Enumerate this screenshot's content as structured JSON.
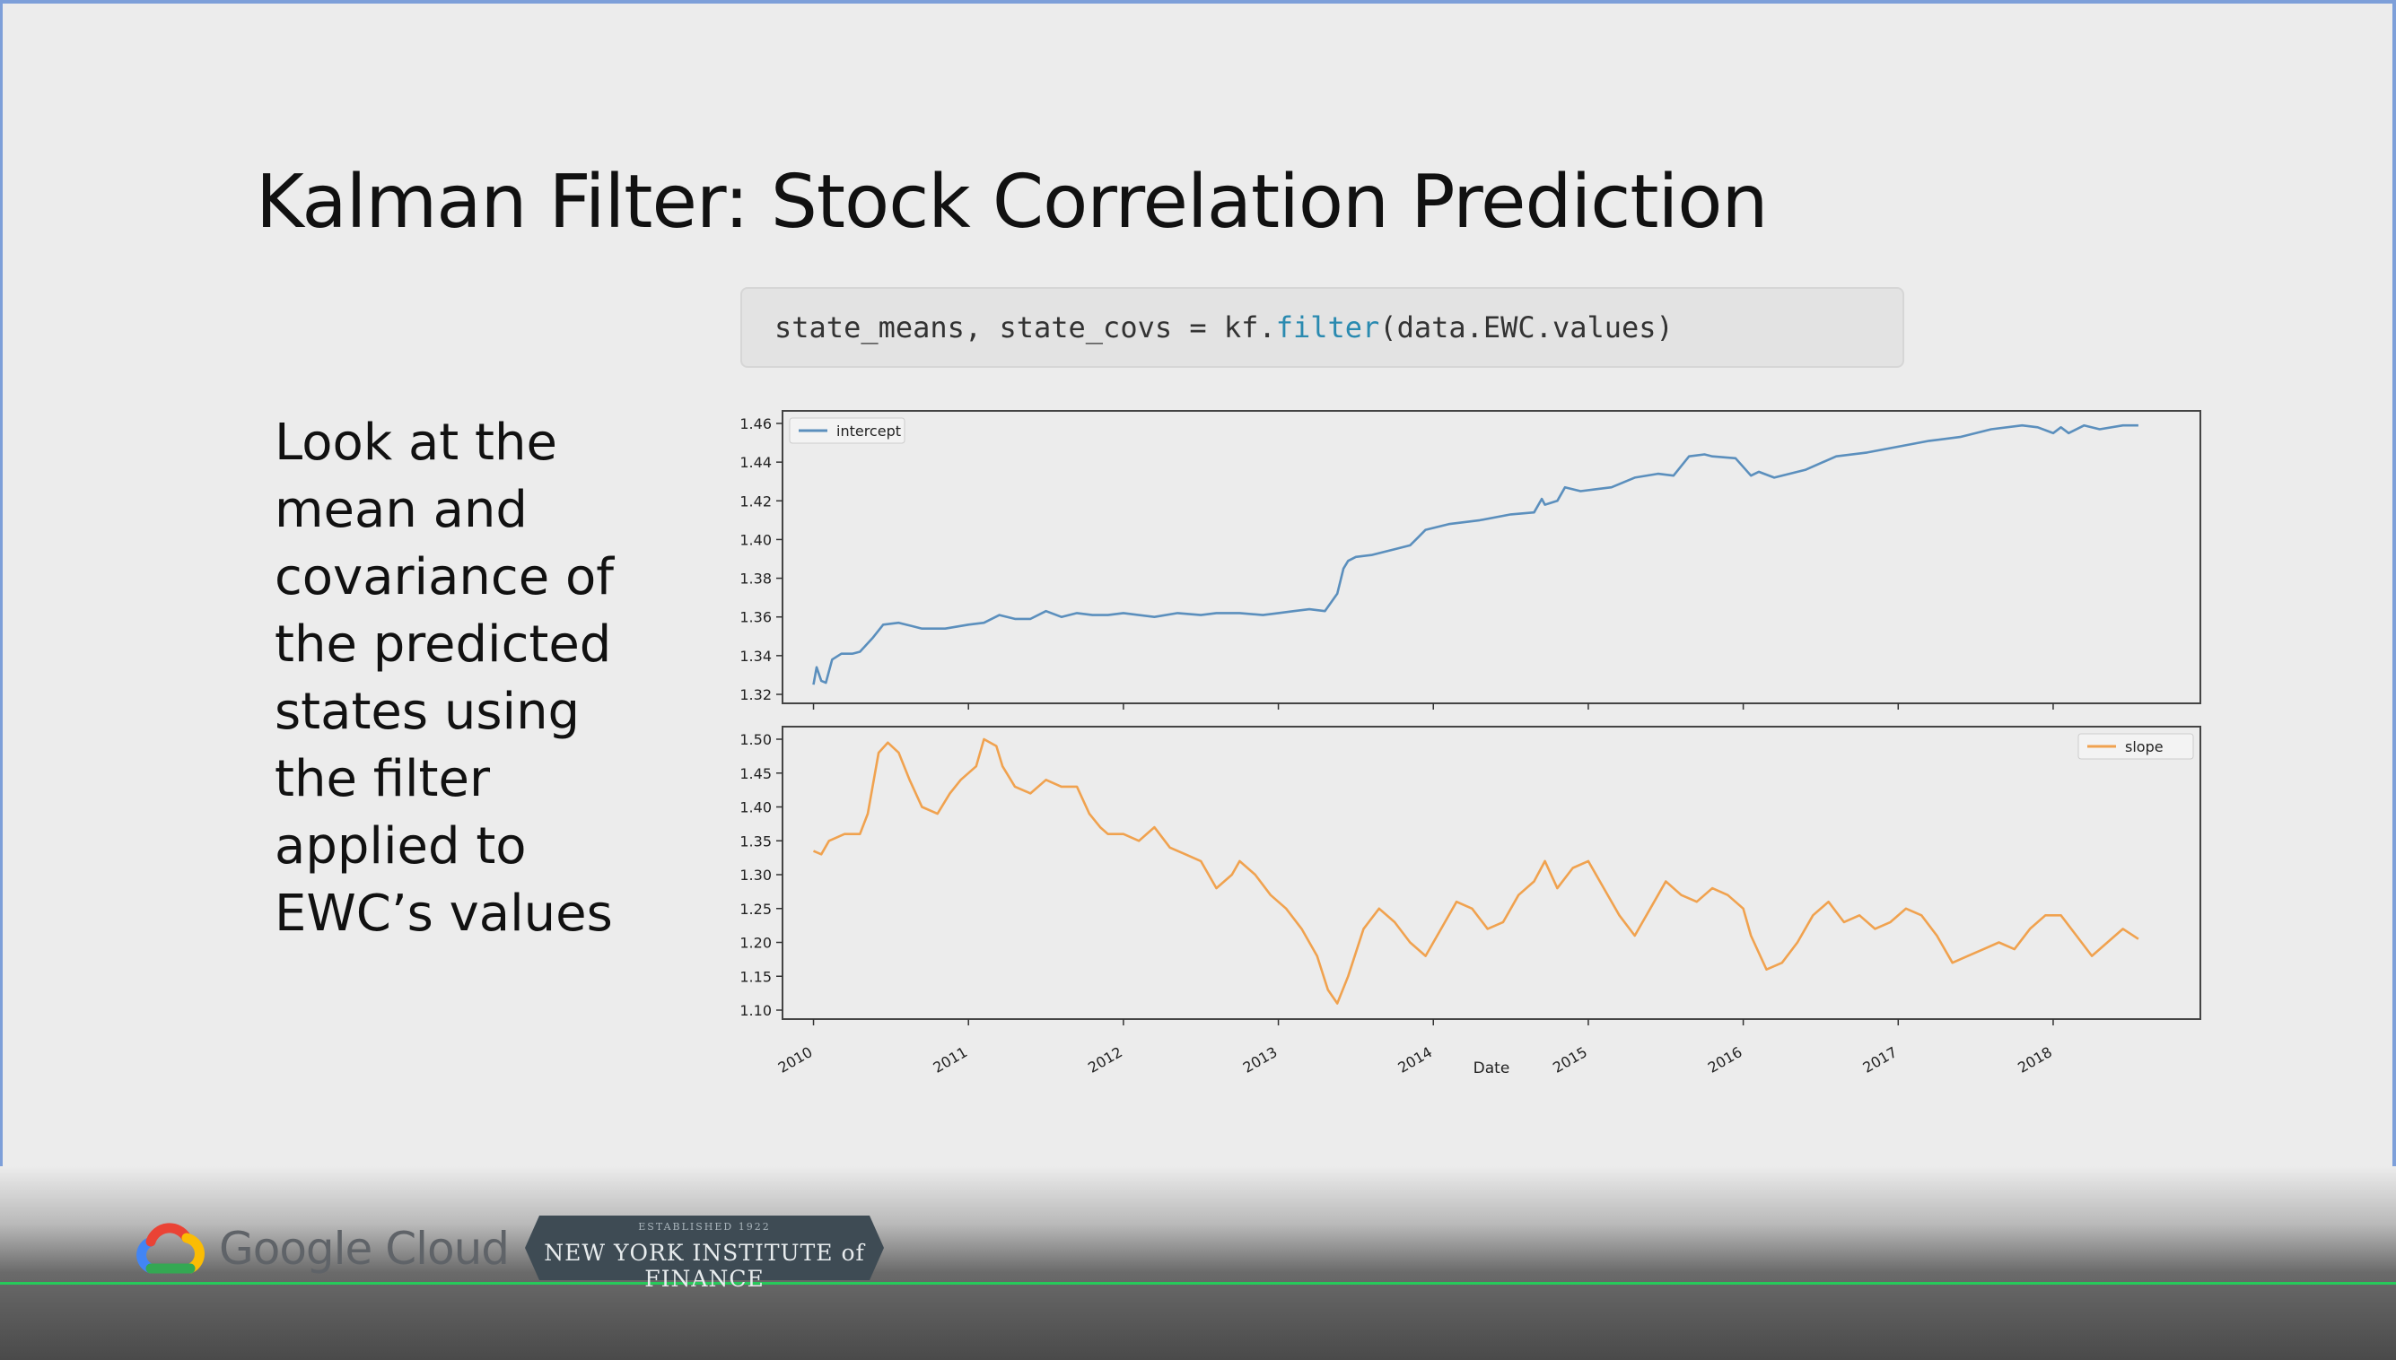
{
  "slide": {
    "title": "Kalman Filter: Stock Correlation Prediction",
    "code": {
      "prefix": "state_means, state_covs = kf.",
      "function": "filter",
      "suffix": "(data.EWC.values)",
      "function_color": "#2a8ab0"
    },
    "body": "Look at the\nmean and\ncovariance of\nthe predicted\nstates using\nthe filter\napplied to\nEWC’s values"
  },
  "footer": {
    "brand": "Google Cloud",
    "logo_icon": "google-cloud-icon",
    "badge_established": "ESTABLISHED 1922",
    "badge_name": "NEW YORK INSTITUTE of FINANCE"
  },
  "chart_data": [
    {
      "type": "line",
      "xlabel": "",
      "ylabel": "",
      "ylim": [
        1.32,
        1.46
      ],
      "y_ticks": [
        "1.32",
        "1.34",
        "1.36",
        "1.38",
        "1.40",
        "1.42",
        "1.44",
        "1.46"
      ],
      "x_range": [
        2009.8,
        2018.95
      ],
      "legend_position": "top-left",
      "series": [
        {
          "name": "intercept",
          "color": "#5b8fbd",
          "x": [
            2010.0,
            2010.02,
            2010.05,
            2010.08,
            2010.12,
            2010.18,
            2010.25,
            2010.3,
            2010.38,
            2010.45,
            2010.55,
            2010.7,
            2010.85,
            2011.0,
            2011.1,
            2011.2,
            2011.3,
            2011.4,
            2011.5,
            2011.6,
            2011.7,
            2011.8,
            2011.9,
            2012.0,
            2012.2,
            2012.35,
            2012.5,
            2012.6,
            2012.75,
            2012.9,
            2013.0,
            2013.1,
            2013.2,
            2013.3,
            2013.38,
            2013.42,
            2013.45,
            2013.5,
            2013.6,
            2013.75,
            2013.85,
            2013.9,
            2013.95,
            2014.1,
            2014.3,
            2014.5,
            2014.65,
            2014.7,
            2014.72,
            2014.8,
            2014.85,
            2014.95,
            2015.05,
            2015.15,
            2015.3,
            2015.45,
            2015.55,
            2015.65,
            2015.75,
            2015.8,
            2015.95,
            2016.05,
            2016.1,
            2016.2,
            2016.4,
            2016.6,
            2016.8,
            2017.0,
            2017.2,
            2017.4,
            2017.6,
            2017.8,
            2017.9,
            2018.0,
            2018.05,
            2018.1,
            2018.2,
            2018.3,
            2018.45,
            2018.55
          ],
          "y": [
            1.325,
            1.334,
            1.327,
            1.326,
            1.338,
            1.341,
            1.341,
            1.342,
            1.349,
            1.356,
            1.357,
            1.354,
            1.354,
            1.356,
            1.357,
            1.361,
            1.359,
            1.359,
            1.363,
            1.36,
            1.362,
            1.361,
            1.361,
            1.362,
            1.36,
            1.362,
            1.361,
            1.362,
            1.362,
            1.361,
            1.362,
            1.363,
            1.364,
            1.363,
            1.372,
            1.385,
            1.389,
            1.391,
            1.392,
            1.395,
            1.397,
            1.401,
            1.405,
            1.408,
            1.41,
            1.413,
            1.414,
            1.421,
            1.418,
            1.42,
            1.427,
            1.425,
            1.426,
            1.427,
            1.432,
            1.434,
            1.433,
            1.443,
            1.444,
            1.443,
            1.442,
            1.433,
            1.435,
            1.432,
            1.436,
            1.443,
            1.445,
            1.448,
            1.451,
            1.453,
            1.457,
            1.459,
            1.458,
            1.455,
            1.458,
            1.455,
            1.459,
            1.457,
            1.459,
            1.459
          ]
        }
      ]
    },
    {
      "type": "line",
      "xlabel": "Date",
      "ylabel": "",
      "ylim": [
        1.1,
        1.5
      ],
      "y_ticks": [
        "1.10",
        "1.15",
        "1.20",
        "1.25",
        "1.30",
        "1.35",
        "1.40",
        "1.45",
        "1.50"
      ],
      "x_ticks": [
        "2010",
        "2011",
        "2012",
        "2013",
        "2014",
        "2015",
        "2016",
        "2017",
        "2018"
      ],
      "x_range": [
        2009.8,
        2018.95
      ],
      "legend_position": "top-right",
      "series": [
        {
          "name": "slope",
          "color": "#f0a24f",
          "x": [
            2010.0,
            2010.05,
            2010.1,
            2010.2,
            2010.3,
            2010.35,
            2010.42,
            2010.48,
            2010.55,
            2010.62,
            2010.7,
            2010.8,
            2010.88,
            2010.95,
            2011.05,
            2011.1,
            2011.18,
            2011.22,
            2011.3,
            2011.4,
            2011.5,
            2011.6,
            2011.7,
            2011.78,
            2011.85,
            2011.9,
            2012.0,
            2012.1,
            2012.2,
            2012.3,
            2012.4,
            2012.5,
            2012.6,
            2012.7,
            2012.75,
            2012.85,
            2012.95,
            2013.05,
            2013.15,
            2013.25,
            2013.32,
            2013.38,
            2013.45,
            2013.55,
            2013.65,
            2013.75,
            2013.85,
            2013.95,
            2014.05,
            2014.15,
            2014.25,
            2014.35,
            2014.45,
            2014.55,
            2014.65,
            2014.72,
            2014.8,
            2014.9,
            2015.0,
            2015.1,
            2015.2,
            2015.3,
            2015.4,
            2015.5,
            2015.6,
            2015.7,
            2015.8,
            2015.9,
            2016.0,
            2016.05,
            2016.15,
            2016.25,
            2016.35,
            2016.45,
            2016.55,
            2016.65,
            2016.75,
            2016.85,
            2016.95,
            2017.05,
            2017.15,
            2017.25,
            2017.35,
            2017.45,
            2017.55,
            2017.65,
            2017.75,
            2017.85,
            2017.95,
            2018.05,
            2018.15,
            2018.25,
            2018.35,
            2018.45,
            2018.55
          ],
          "y": [
            1.335,
            1.33,
            1.35,
            1.36,
            1.36,
            1.39,
            1.48,
            1.495,
            1.48,
            1.44,
            1.4,
            1.39,
            1.42,
            1.44,
            1.46,
            1.5,
            1.49,
            1.46,
            1.43,
            1.42,
            1.44,
            1.43,
            1.43,
            1.39,
            1.37,
            1.36,
            1.36,
            1.35,
            1.37,
            1.34,
            1.33,
            1.32,
            1.28,
            1.3,
            1.32,
            1.3,
            1.27,
            1.25,
            1.22,
            1.18,
            1.13,
            1.11,
            1.15,
            1.22,
            1.25,
            1.23,
            1.2,
            1.18,
            1.22,
            1.26,
            1.25,
            1.22,
            1.23,
            1.27,
            1.29,
            1.32,
            1.28,
            1.31,
            1.32,
            1.28,
            1.24,
            1.21,
            1.25,
            1.29,
            1.27,
            1.26,
            1.28,
            1.27,
            1.25,
            1.21,
            1.16,
            1.17,
            1.2,
            1.24,
            1.26,
            1.23,
            1.24,
            1.22,
            1.23,
            1.25,
            1.24,
            1.21,
            1.17,
            1.18,
            1.19,
            1.2,
            1.19,
            1.22,
            1.24,
            1.24,
            1.21,
            1.18,
            1.2,
            1.22,
            1.205
          ]
        }
      ]
    }
  ]
}
